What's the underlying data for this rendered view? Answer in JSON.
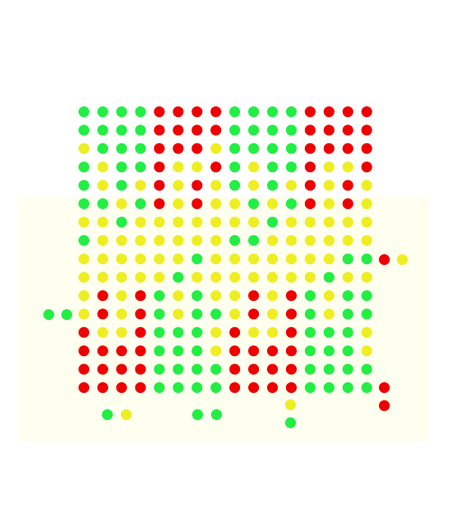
{
  "board": {
    "palette": {
      "G": "#22ee44",
      "R": "#ee0000",
      "Y": "#eeee22"
    },
    "rows": [
      [
        "G",
        "G",
        "G",
        "G",
        "R",
        "R",
        "R",
        "R",
        "G",
        "G",
        "G",
        "G",
        "R",
        "R",
        "R",
        "R"
      ],
      [
        "G",
        "G",
        "G",
        "G",
        "R",
        "R",
        "R",
        "R",
        "G",
        "G",
        "G",
        "G",
        "R",
        "R",
        "R",
        "R"
      ],
      [
        "Y",
        "G",
        "G",
        "G",
        "R",
        "R",
        "R",
        "Y",
        "G",
        "G",
        "G",
        "G",
        "R",
        "R",
        "R",
        "R"
      ],
      [
        "G",
        "Y",
        "G",
        "G",
        "R",
        "Y",
        "Y",
        "R",
        "G",
        "Y",
        "G",
        "G",
        "R",
        "Y",
        "Y",
        "R"
      ],
      [
        "G",
        "Y",
        "G",
        "Y",
        "R",
        "Y",
        "R",
        "Y",
        "G",
        "Y",
        "G",
        "Y",
        "R",
        "Y",
        "R",
        "Y"
      ],
      [
        "G",
        "G",
        "Y",
        "G",
        "R",
        "Y",
        "R",
        "Y",
        "Y",
        "G",
        "Y",
        "G",
        "R",
        "Y",
        "R",
        "Y"
      ],
      [
        "Y",
        "Y",
        "G",
        "Y",
        "Y",
        "Y",
        "Y",
        "Y",
        "Y",
        "Y",
        "G",
        "Y",
        "Y",
        "Y",
        "Y",
        "Y"
      ],
      [
        "G",
        "Y",
        "Y",
        "Y",
        "Y",
        "Y",
        "Y",
        "Y",
        "G",
        "G",
        "Y",
        "Y",
        "Y",
        "Y",
        "Y",
        "Y"
      ],
      [
        "Y",
        "Y",
        "Y",
        "Y",
        "Y",
        "Y",
        "G",
        "Y",
        "Y",
        "Y",
        "Y",
        "Y",
        "Y",
        "Y",
        "G",
        "G"
      ],
      [
        "Y",
        "Y",
        "Y",
        "Y",
        "Y",
        "G",
        "Y",
        "Y",
        "Y",
        "Y",
        "Y",
        "Y",
        "Y",
        "G",
        "Y",
        "Y"
      ],
      [
        "Y",
        "R",
        "Y",
        "R",
        "G",
        "Y",
        "G",
        "Y",
        "Y",
        "R",
        "Y",
        "R",
        "G",
        "Y",
        "G",
        "G"
      ],
      [
        "Y",
        "R",
        "Y",
        "R",
        "G",
        "Y",
        "G",
        "G",
        "Y",
        "R",
        "Y",
        "R",
        "G",
        "Y",
        "G",
        "G"
      ],
      [
        "R",
        "Y",
        "Y",
        "R",
        "G",
        "G",
        "G",
        "Y",
        "R",
        "Y",
        "Y",
        "R",
        "G",
        "G",
        "G",
        "Y"
      ],
      [
        "R",
        "R",
        "R",
        "R",
        "G",
        "G",
        "G",
        "Y",
        "R",
        "R",
        "R",
        "R",
        "G",
        "G",
        "G",
        "Y"
      ],
      [
        "R",
        "R",
        "R",
        "R",
        "G",
        "G",
        "G",
        "G",
        "R",
        "R",
        "R",
        "R",
        "G",
        "G",
        "G",
        "G"
      ],
      [
        "R",
        "R",
        "R",
        "R",
        "G",
        "G",
        "G",
        "G",
        "R",
        "R",
        "R",
        "R",
        "G",
        "G",
        "G",
        "G"
      ]
    ]
  }
}
